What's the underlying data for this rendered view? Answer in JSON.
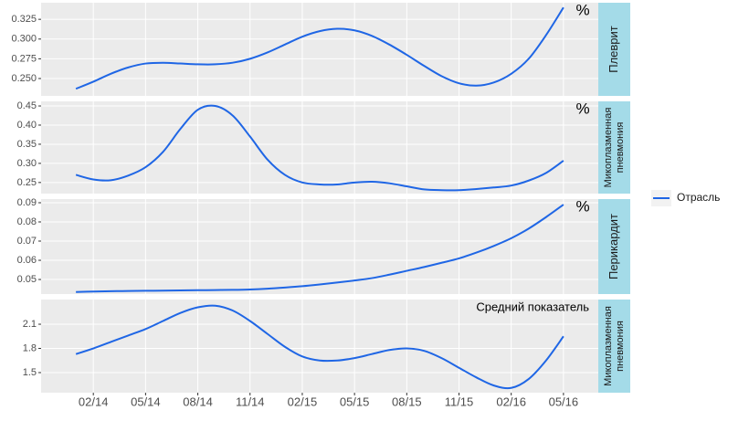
{
  "chart_data": {
    "type": "line",
    "series": [
      {
        "name": "Отрасль",
        "color": "#1f66e5"
      }
    ],
    "x": [
      "2014-01",
      "2014-02",
      "2014-03",
      "2014-04",
      "2014-05",
      "2014-06",
      "2014-07",
      "2014-08",
      "2014-09",
      "2014-10",
      "2014-11",
      "2014-12",
      "2015-01",
      "2015-02",
      "2015-03",
      "2015-04",
      "2015-05",
      "2015-06",
      "2015-07",
      "2015-08",
      "2015-09",
      "2015-10",
      "2015-11",
      "2015-12",
      "2016-01",
      "2016-02",
      "2016-03",
      "2016-04",
      "2016-05"
    ],
    "xlim": [
      "2013-11",
      "2016-07"
    ],
    "xticks": [
      {
        "value": "2014-02",
        "label": "02/14"
      },
      {
        "value": "2014-05",
        "label": "05/14"
      },
      {
        "value": "2014-08",
        "label": "08/14"
      },
      {
        "value": "2014-11",
        "label": "11/14"
      },
      {
        "value": "2015-02",
        "label": "02/15"
      },
      {
        "value": "2015-05",
        "label": "05/15"
      },
      {
        "value": "2015-08",
        "label": "08/15"
      },
      {
        "value": "2015-11",
        "label": "11/15"
      },
      {
        "value": "2016-02",
        "label": "02/16"
      },
      {
        "value": "2016-05",
        "label": "05/16"
      }
    ],
    "grid": true,
    "panels": [
      {
        "label": [
          "Плеврит"
        ],
        "annotation": "%",
        "ylim": [
          0.228,
          0.346
        ],
        "yticks": [
          {
            "value": 0.25,
            "label": "0.250"
          },
          {
            "value": 0.275,
            "label": "0.275"
          },
          {
            "value": 0.3,
            "label": "0.300"
          },
          {
            "value": 0.325,
            "label": "0.325"
          }
        ],
        "values": [
          0.237,
          0.246,
          0.256,
          0.264,
          0.269,
          0.27,
          0.269,
          0.268,
          0.268,
          0.27,
          0.275,
          0.283,
          0.293,
          0.303,
          0.31,
          0.313,
          0.311,
          0.304,
          0.293,
          0.28,
          0.266,
          0.253,
          0.244,
          0.241,
          0.245,
          0.256,
          0.275,
          0.305,
          0.34
        ]
      },
      {
        "label": [
          "Микоплазменная",
          "пневмония"
        ],
        "annotation": "%",
        "ylim": [
          0.221,
          0.462
        ],
        "yticks": [
          0.25,
          {
            "value": 0.3,
            "label": "0.30"
          },
          0.35,
          {
            "value": 0.4,
            "label": "0.40"
          },
          0.45
        ],
        "values": [
          0.27,
          0.258,
          0.256,
          0.268,
          0.29,
          0.33,
          0.39,
          0.44,
          0.45,
          0.425,
          0.37,
          0.31,
          0.27,
          0.25,
          0.245,
          0.245,
          0.25,
          0.252,
          0.248,
          0.24,
          0.232,
          0.23,
          0.23,
          0.233,
          0.237,
          0.242,
          0.255,
          0.275,
          0.307
        ]
      },
      {
        "label": [
          "Перикардит"
        ],
        "annotation": "%",
        "ylim": [
          0.0424,
          0.0919
        ],
        "yticks": [
          0.05,
          0.06,
          0.07,
          0.08,
          0.09
        ],
        "values": [
          0.0435,
          0.0437,
          0.0439,
          0.044,
          0.0441,
          0.0442,
          0.0443,
          0.0444,
          0.0445,
          0.0446,
          0.0448,
          0.0452,
          0.0458,
          0.0465,
          0.0474,
          0.0484,
          0.0495,
          0.0507,
          0.0525,
          0.0545,
          0.0565,
          0.0587,
          0.061,
          0.064,
          0.0675,
          0.0715,
          0.0765,
          0.0825,
          0.089
        ]
      },
      {
        "label": [
          "Микоплазменная",
          "пневмония"
        ],
        "annotation": "Средний показатель",
        "ylim": [
          1.251,
          2.406
        ],
        "yticks": [
          1.5,
          1.8,
          2.1
        ],
        "values": [
          1.73,
          1.8,
          1.88,
          1.96,
          2.04,
          2.14,
          2.24,
          2.31,
          2.33,
          2.27,
          2.14,
          1.98,
          1.82,
          1.7,
          1.65,
          1.65,
          1.68,
          1.73,
          1.78,
          1.8,
          1.77,
          1.68,
          1.56,
          1.44,
          1.34,
          1.31,
          1.42,
          1.65,
          1.95
        ]
      }
    ]
  }
}
